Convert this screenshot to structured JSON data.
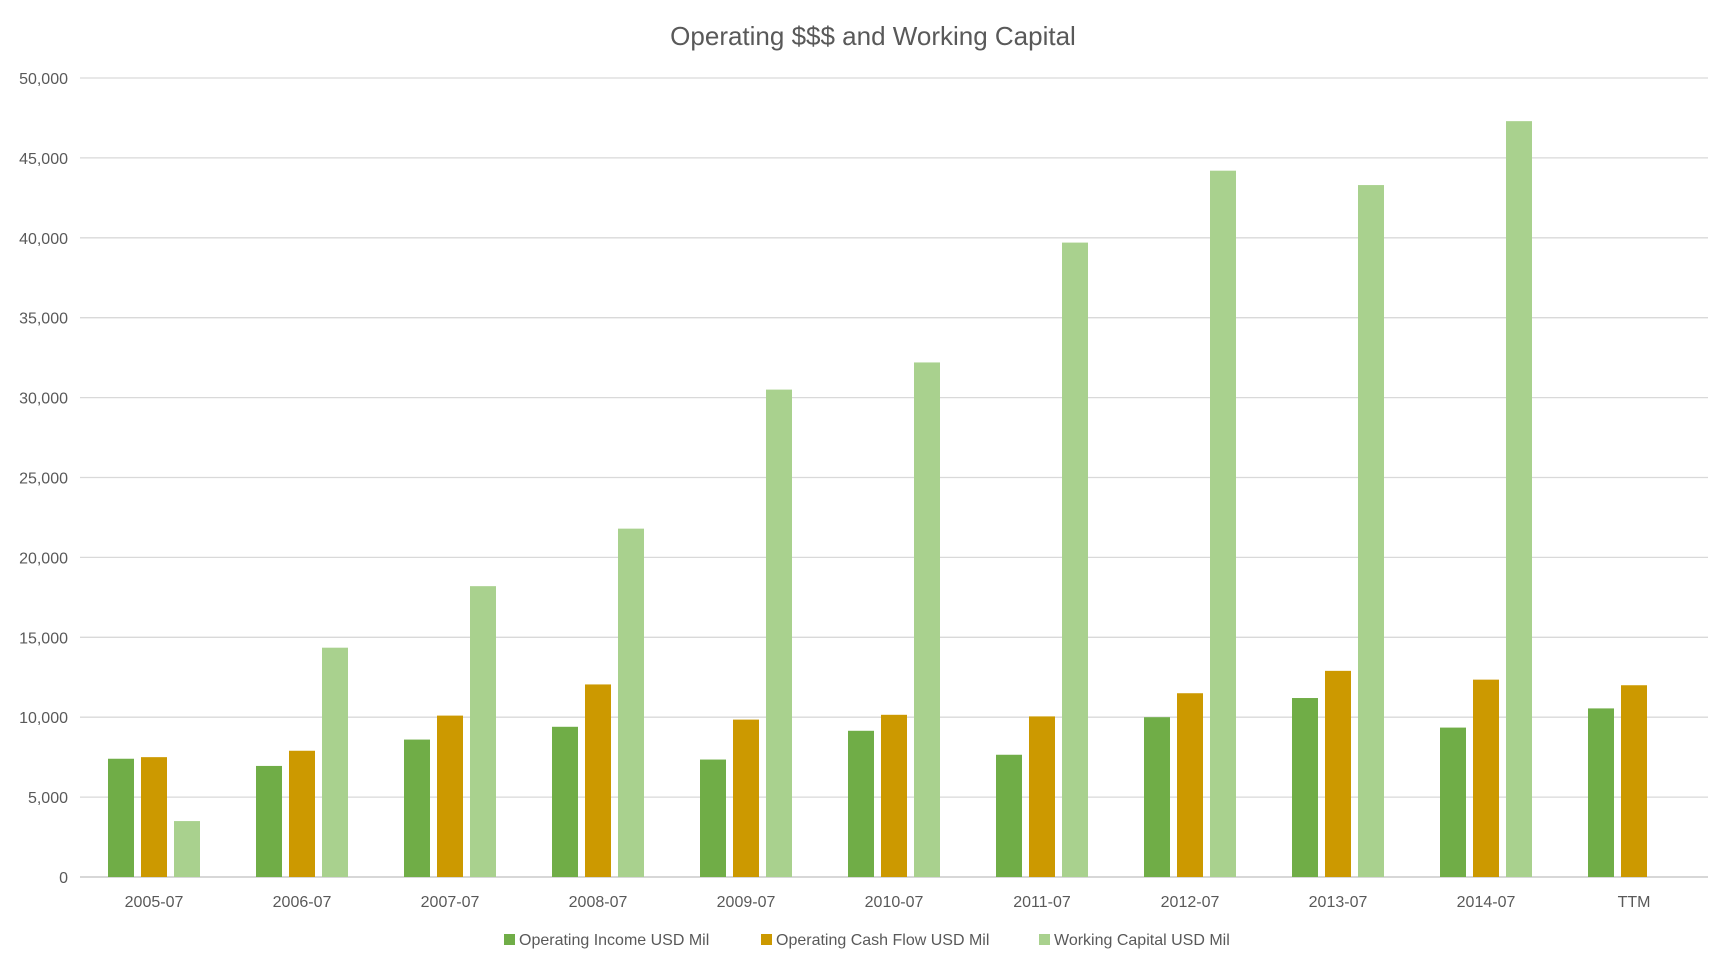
{
  "chart_data": {
    "type": "bar",
    "title": "Operating $$$ and Working Capital",
    "xlabel": "",
    "ylabel": "",
    "ylim": [
      0,
      50000
    ],
    "yticks": [
      0,
      5000,
      10000,
      15000,
      20000,
      25000,
      30000,
      35000,
      40000,
      45000,
      50000
    ],
    "ytick_labels": [
      "0",
      "5,000",
      "10,000",
      "15,000",
      "20,000",
      "25,000",
      "30,000",
      "35,000",
      "40,000",
      "45,000",
      "50,000"
    ],
    "grid": true,
    "legend_position": "bottom",
    "categories": [
      "2005-07",
      "2006-07",
      "2007-07",
      "2008-07",
      "2009-07",
      "2010-07",
      "2011-07",
      "2012-07",
      "2013-07",
      "2014-07",
      "TTM"
    ],
    "series": [
      {
        "name": "Operating Income USD Mil",
        "color": "#70ad47",
        "values": [
          7400,
          6950,
          8600,
          9400,
          7350,
          9150,
          7650,
          10000,
          11200,
          9350,
          10550
        ]
      },
      {
        "name": "Operating Cash Flow USD Mil",
        "color": "#cc9900",
        "values": [
          7500,
          7900,
          10100,
          12050,
          9850,
          10150,
          10050,
          11500,
          12900,
          12350,
          12000
        ]
      },
      {
        "name": "Working Capital USD Mil",
        "color": "#a9d18e",
        "values": [
          3500,
          14350,
          18200,
          21800,
          30500,
          32200,
          39700,
          44200,
          43300,
          47300,
          null
        ]
      }
    ]
  }
}
